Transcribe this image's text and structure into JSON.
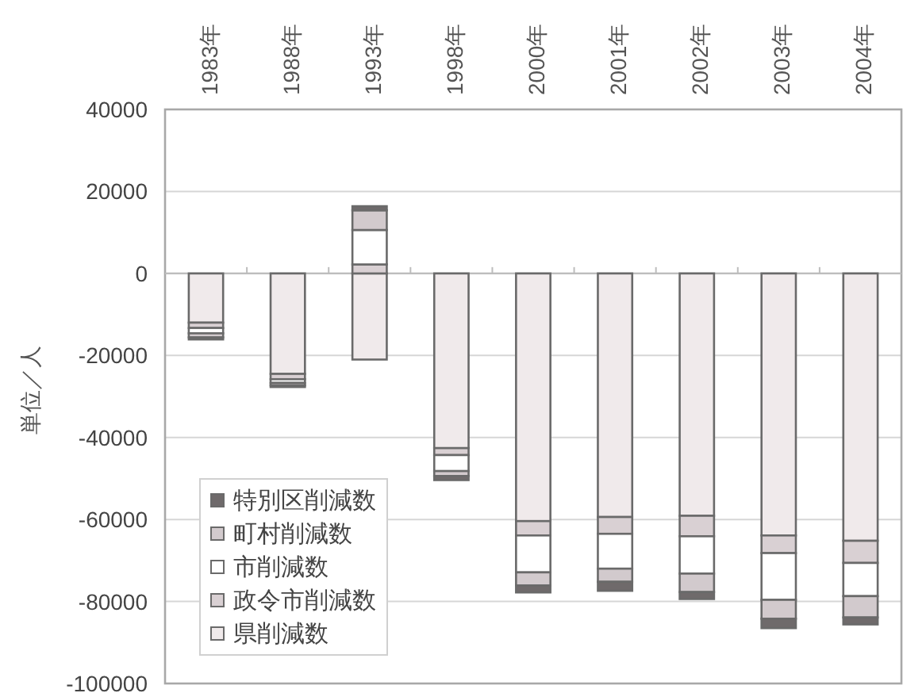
{
  "chart_data": {
    "type": "bar",
    "stacked": true,
    "categories": [
      "1983年",
      "1988年",
      "1993年",
      "1998年",
      "2000年",
      "2001年",
      "2002年",
      "2003年",
      "2004年"
    ],
    "ylabel": "単位／人",
    "ylim": [
      -100000,
      40000
    ],
    "yticks": [
      -100000,
      -80000,
      -60000,
      -40000,
      -20000,
      0,
      20000,
      40000
    ],
    "grid": "y",
    "legend": "bottom left",
    "series": [
      {
        "name": "県削減数",
        "color": "#f0eaeb",
        "values": [
          -12000,
          -24500,
          -21000,
          -42600,
          -60400,
          -59400,
          -59100,
          -63900,
          -65200
        ]
      },
      {
        "name": "政令市削減数",
        "color": "#d9d0d3",
        "values": [
          -1300,
          -1300,
          2200,
          -1700,
          -3500,
          -4100,
          -5000,
          -4300,
          -5400
        ]
      },
      {
        "name": "市削減数",
        "color": "#ffffff",
        "values": [
          -1300,
          -900,
          8400,
          -3900,
          -9000,
          -8500,
          -9100,
          -11400,
          -8100
        ]
      },
      {
        "name": "町村削減数",
        "color": "#d2cacd",
        "values": [
          -1000,
          -600,
          4800,
          -1200,
          -3200,
          -3200,
          -4500,
          -4600,
          -5200
        ]
      },
      {
        "name": "特別区削減数",
        "color": "#6f6a6b",
        "values": [
          -500,
          -400,
          1000,
          -1000,
          -1700,
          -2200,
          -1700,
          -2300,
          -1700
        ]
      }
    ]
  }
}
